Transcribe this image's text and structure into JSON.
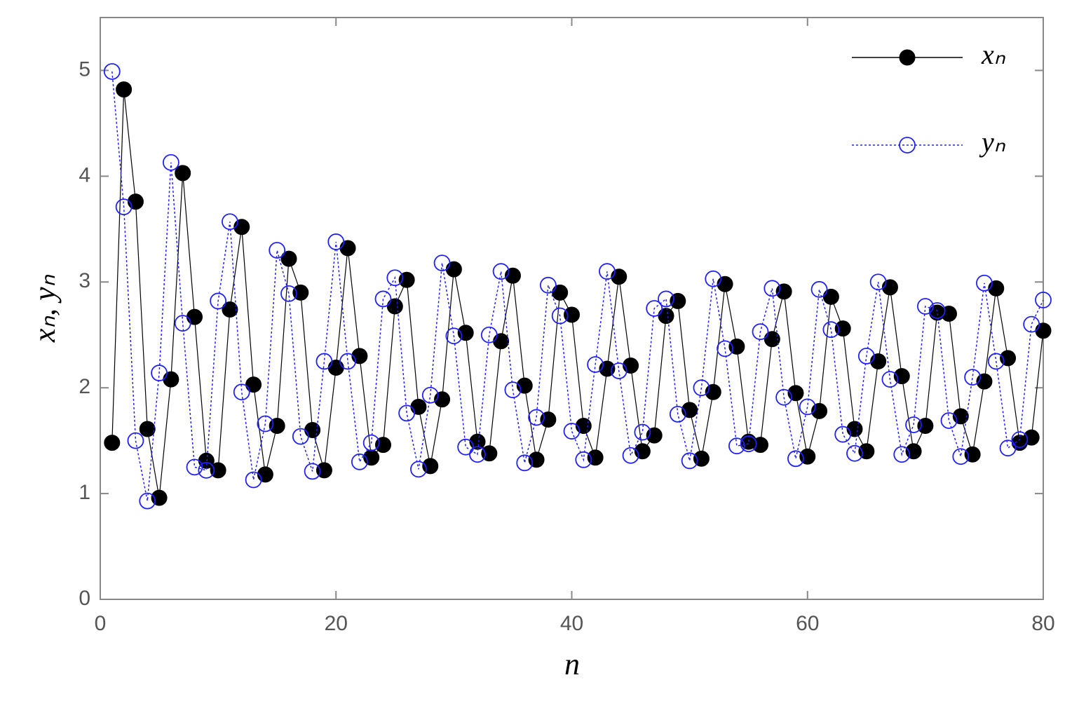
{
  "chart_data": {
    "type": "line",
    "xlabel": "n",
    "ylabel": "xₙ, yₙ",
    "x": [
      1,
      2,
      3,
      4,
      5,
      6,
      7,
      8,
      9,
      10,
      11,
      12,
      13,
      14,
      15,
      16,
      17,
      18,
      19,
      20,
      21,
      22,
      23,
      24,
      25,
      26,
      27,
      28,
      29,
      30,
      31,
      32,
      33,
      34,
      35,
      36,
      37,
      38,
      39,
      40,
      41,
      42,
      43,
      44,
      45,
      46,
      47,
      48,
      49,
      50,
      51,
      52,
      53,
      54,
      55,
      56,
      57,
      58,
      59,
      60,
      61,
      62,
      63,
      64,
      65,
      66,
      67,
      68,
      69,
      70,
      71,
      72,
      73,
      74,
      75,
      76,
      77,
      78,
      79,
      80
    ],
    "series": [
      {
        "name": "xₙ",
        "color": "#000000",
        "marker": "filled",
        "dash": false,
        "values": [
          1.48,
          4.82,
          3.76,
          1.61,
          0.96,
          2.08,
          4.03,
          2.67,
          1.31,
          1.22,
          2.74,
          3.52,
          2.03,
          1.18,
          1.64,
          3.22,
          2.9,
          1.6,
          1.22,
          2.19,
          3.32,
          2.3,
          1.34,
          1.46,
          2.77,
          3.02,
          1.82,
          1.26,
          1.89,
          3.12,
          2.52,
          1.49,
          1.38,
          2.44,
          3.06,
          2.02,
          1.32,
          1.7,
          2.9,
          2.69,
          1.64,
          1.34,
          2.18,
          3.05,
          2.21,
          1.4,
          1.55,
          2.68,
          2.82,
          1.79,
          1.33,
          1.96,
          2.98,
          2.39,
          1.49,
          1.46,
          2.46,
          2.91,
          1.95,
          1.35,
          1.78,
          2.86,
          2.56,
          1.61,
          1.4,
          2.25,
          2.95,
          2.11,
          1.4,
          1.64,
          2.71,
          2.7,
          1.73,
          1.37,
          2.06,
          2.94,
          2.28,
          1.48,
          1.53,
          2.54
        ]
      },
      {
        "name": "yₙ",
        "color": "#2020ff",
        "marker": "open",
        "dash": true,
        "values": [
          4.99,
          3.71,
          1.5,
          0.93,
          2.14,
          4.13,
          2.61,
          1.25,
          1.22,
          2.82,
          3.57,
          1.96,
          1.13,
          1.66,
          3.3,
          2.89,
          1.54,
          1.21,
          2.25,
          3.38,
          2.25,
          1.3,
          1.48,
          2.84,
          3.04,
          1.76,
          1.23,
          1.93,
          3.18,
          2.49,
          1.44,
          1.37,
          2.5,
          3.1,
          1.98,
          1.29,
          1.72,
          2.97,
          2.68,
          1.59,
          1.32,
          2.22,
          3.1,
          2.16,
          1.36,
          1.58,
          2.75,
          2.84,
          1.75,
          1.31,
          2.0,
          3.03,
          2.37,
          1.45,
          1.47,
          2.53,
          2.94,
          1.91,
          1.33,
          1.82,
          2.93,
          2.55,
          1.56,
          1.38,
          2.3,
          3.0,
          2.08,
          1.37,
          1.65,
          2.77,
          2.73,
          1.69,
          1.35,
          2.1,
          2.99,
          2.25,
          1.43,
          1.51,
          2.6,
          2.83
        ]
      }
    ],
    "xlim": [
      0,
      80
    ],
    "xticks": [
      0,
      20,
      40,
      60,
      80
    ],
    "ylim": [
      0,
      5.5
    ],
    "yticks": [
      0,
      1,
      2,
      3,
      4,
      5
    ],
    "legend": "upper right"
  }
}
